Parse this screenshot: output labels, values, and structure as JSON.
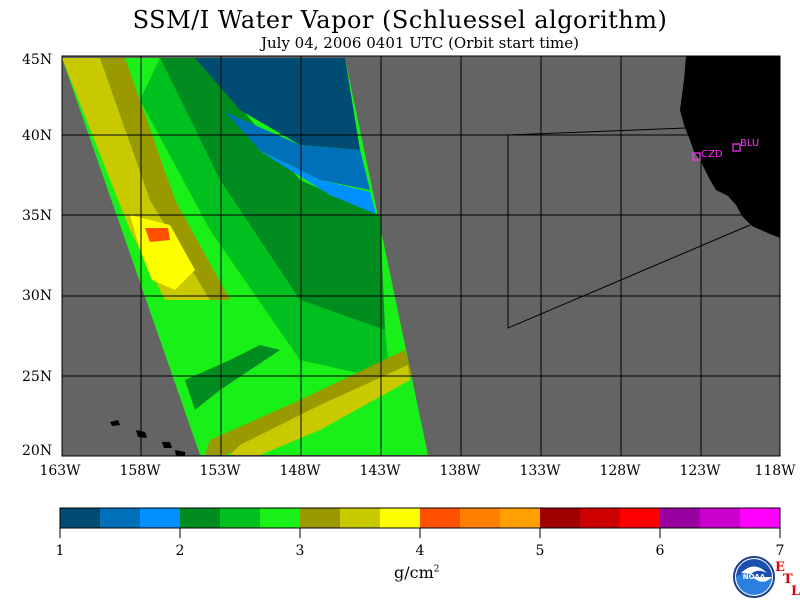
{
  "title": "SSM/I Water Vapor (Schluessel algorithm)",
  "subtitle": "July 04, 2006  0401 UTC  (Orbit start time)",
  "map": {
    "lat_labels": [
      "45N",
      "40N",
      "35N",
      "30N",
      "25N",
      "20N"
    ],
    "lon_labels": [
      "163W",
      "158W",
      "153W",
      "148W",
      "143W",
      "138W",
      "133W",
      "128W",
      "123W",
      "118W"
    ],
    "stations": [
      {
        "id": "CZD",
        "label": "CZD"
      },
      {
        "id": "BLU",
        "label": "BLU"
      }
    ],
    "colors": {
      "ocean_no_data": "#646464",
      "land": "#000000",
      "station": "#ff33ff",
      "grid": "#000000"
    }
  },
  "colorbar": {
    "tick_labels": [
      "1",
      "2",
      "3",
      "4",
      "5",
      "6",
      "7"
    ],
    "units": "g/cm",
    "units_exp": "2",
    "colors": [
      "#004c73",
      "#0070b8",
      "#0090ff",
      "#008c1f",
      "#00c020",
      "#18f018",
      "#999900",
      "#c9c900",
      "#ffff00",
      "#ff5000",
      "#ff7f00",
      "#ffa000",
      "#a00000",
      "#cc0000",
      "#ff0000",
      "#9900a0",
      "#cc00cc",
      "#ff00ff"
    ]
  },
  "logo": {
    "text": "NOAA",
    "etl_letters": [
      "E",
      "T",
      "L"
    ]
  }
}
